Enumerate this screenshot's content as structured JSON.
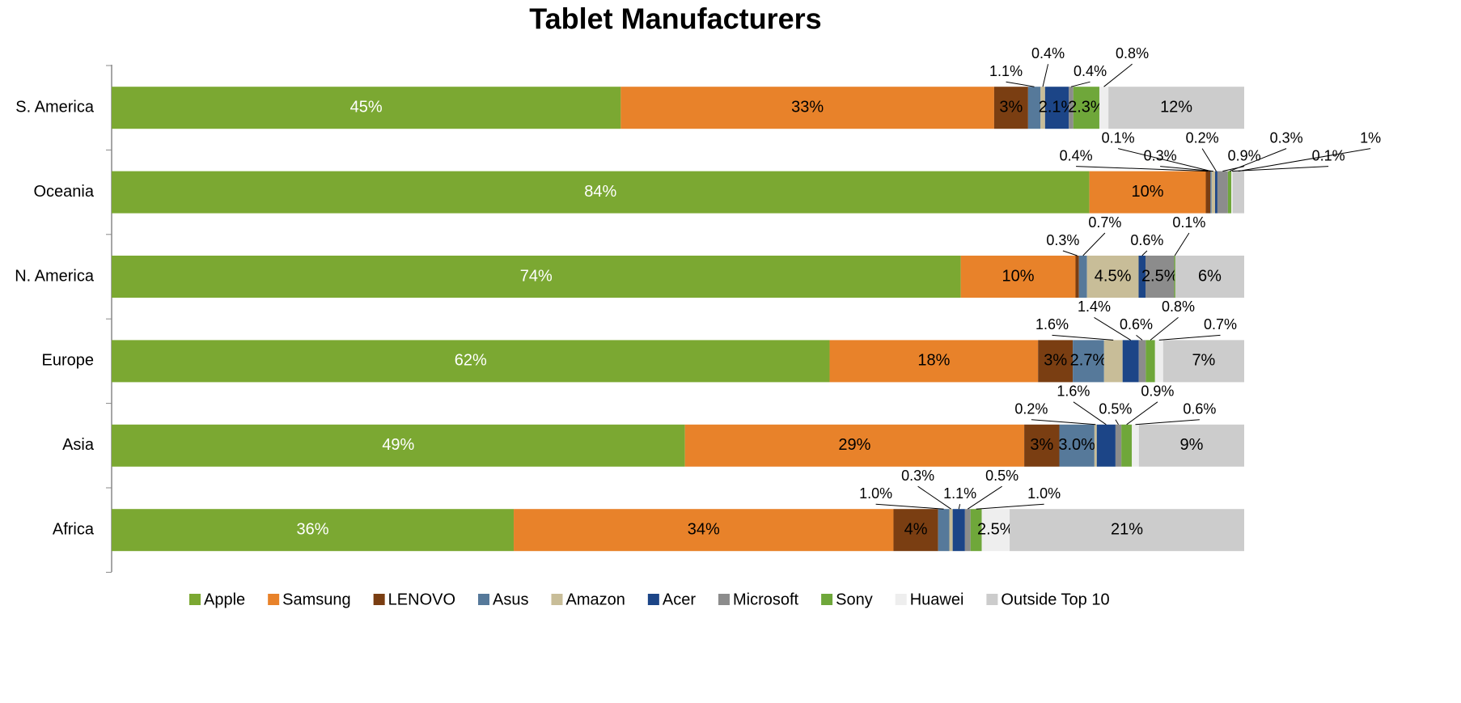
{
  "chart_data": {
    "type": "stacked-bar-100",
    "title": "Tablet Manufacturers",
    "categories": [
      "S. America",
      "Oceania",
      "N. America",
      "Europe",
      "Asia",
      "Africa"
    ],
    "series": [
      {
        "name": "Apple",
        "color": "#7ba832",
        "values": [
          45,
          84,
          74,
          62,
          49,
          36
        ],
        "value_labels": [
          "45%",
          "84%",
          "74%",
          "62%",
          "49%",
          "36%"
        ]
      },
      {
        "name": "Samsung",
        "color": "#e8822a",
        "values": [
          33,
          10,
          10,
          18,
          29,
          34
        ],
        "value_labels": [
          "33%",
          "10%",
          "10%",
          "18%",
          "29%",
          "34%"
        ]
      },
      {
        "name": "LENOVO",
        "color": "#7a3e12",
        "values": [
          3,
          0.4,
          0.3,
          3,
          3,
          4
        ],
        "value_labels": [
          "3%",
          "0.4%",
          "0.3%",
          "3%",
          "3%",
          "4%"
        ]
      },
      {
        "name": "Asus",
        "color": "#56799a",
        "values": [
          1.1,
          0.1,
          0.7,
          2.7,
          3.0,
          1.0
        ],
        "value_labels": [
          "1.1%",
          "0.1%",
          "0.7%",
          "2.7%",
          "3.0%",
          "1.0%"
        ]
      },
      {
        "name": "Amazon",
        "color": "#c8bd98",
        "values": [
          0.4,
          0.3,
          4.5,
          1.6,
          0.2,
          0.3
        ],
        "value_labels": [
          "0.4%",
          "0.3%",
          "4.5%",
          "1.6%",
          "0.2%",
          "0.3%"
        ]
      },
      {
        "name": "Acer",
        "color": "#1c4587",
        "values": [
          2.1,
          0.2,
          0.6,
          1.4,
          1.6,
          1.1
        ],
        "value_labels": [
          "2.1%",
          "0.2%",
          "0.6%",
          "1.4%",
          "1.6%",
          "1.1%"
        ]
      },
      {
        "name": "Microsoft",
        "color": "#8c8c8c",
        "values": [
          0.4,
          0.9,
          2.5,
          0.6,
          0.5,
          0.5
        ],
        "value_labels": [
          "0.4%",
          "0.9%",
          "2.5%",
          "0.6%",
          "0.5%",
          "0.5%"
        ]
      },
      {
        "name": "Sony",
        "color": "#6fa73a",
        "values": [
          2.3,
          0.3,
          0.1,
          0.8,
          0.9,
          1.0
        ],
        "value_labels": [
          "2.3%",
          "0.3%",
          "0.1%",
          "0.8%",
          "0.9%",
          "1.0%"
        ]
      },
      {
        "name": "Huawei",
        "color": "#eeeeee",
        "values": [
          0.8,
          0.1,
          null,
          0.7,
          0.6,
          2.5
        ],
        "value_labels": [
          "0.8%",
          "0.1%",
          null,
          "0.7%",
          "0.6%",
          "2.5%"
        ]
      },
      {
        "name": "Outside Top 10",
        "color": "#cccccc",
        "values": [
          12,
          1,
          6,
          7,
          9,
          21
        ],
        "value_labels": [
          "12%",
          "1%",
          "6%",
          "7%",
          "9%",
          "21%"
        ]
      }
    ]
  }
}
